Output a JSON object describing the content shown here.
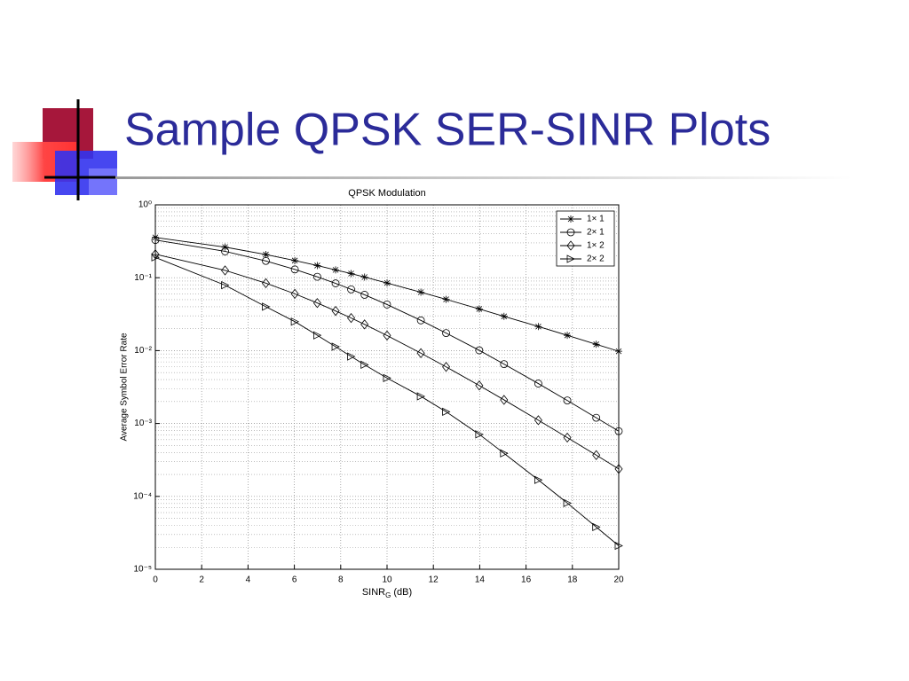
{
  "slide": {
    "title": "Sample QPSK SER-SINR Plots"
  },
  "chart_data": {
    "type": "line",
    "title": "QPSK Modulation",
    "xlabel": "SINR",
    "xlabel_subscript": "G",
    "xlabel_suffix": "(dB)",
    "ylabel": "Average Symbol Error Rate",
    "x": [
      0,
      3.01,
      4.77,
      6.02,
      6.99,
      7.78,
      8.45,
      9.03,
      10,
      11.46,
      12.55,
      13.98,
      15.05,
      16.53,
      17.78,
      19.03,
      20
    ],
    "series": [
      {
        "name": "1× 1",
        "color": "#000000",
        "marker": "star",
        "values": [
          0.357,
          0.263,
          0.208,
          0.172,
          0.147,
          0.128,
          0.114,
          0.102,
          0.0847,
          0.0633,
          0.0505,
          0.0373,
          0.0295,
          0.0214,
          0.0162,
          0.0122,
          0.0098
        ]
      },
      {
        "name": "2× 1",
        "color": "#000000",
        "marker": "circle",
        "values": [
          0.329,
          0.23,
          0.17,
          0.13,
          0.103,
          0.0837,
          0.0692,
          0.0583,
          0.0429,
          0.026,
          0.0174,
          0.0101,
          0.00653,
          0.00353,
          0.00207,
          0.0012,
          0.000785
        ]
      },
      {
        "name": "1× 2",
        "color": "#000000",
        "marker": "diamond",
        "values": [
          0.21,
          0.126,
          0.0842,
          0.0601,
          0.045,
          0.035,
          0.028,
          0.0229,
          0.0161,
          0.00924,
          0.00598,
          0.00332,
          0.00211,
          0.00111,
          0.000641,
          0.000368,
          0.000238
        ]
      },
      {
        "name": "2× 2",
        "color": "#000000",
        "marker": "triangle-right",
        "values": [
          0.19,
          0.079,
          0.04,
          0.025,
          0.0162,
          0.0113,
          0.0083,
          0.0064,
          0.0042,
          0.00236,
          0.00145,
          0.00071,
          0.00039,
          0.000168,
          8.1e-05,
          3.8e-05,
          2.1e-05
        ]
      }
    ],
    "xlim": [
      0,
      20
    ],
    "xticks": [
      0,
      2,
      4,
      6,
      8,
      10,
      12,
      14,
      16,
      18,
      20
    ],
    "ylim": [
      1e-05,
      1
    ],
    "ylog": true,
    "yticks": [
      {
        "value": 1,
        "label": "10⁰"
      },
      {
        "value": 0.1,
        "label": "10⁻¹"
      },
      {
        "value": 0.01,
        "label": "10⁻²"
      },
      {
        "value": 0.001,
        "label": "10⁻³"
      },
      {
        "value": 0.0001,
        "label": "10⁻⁴"
      },
      {
        "value": 1e-05,
        "label": "10⁻⁵"
      }
    ],
    "grid": true,
    "legend": "upper right"
  }
}
